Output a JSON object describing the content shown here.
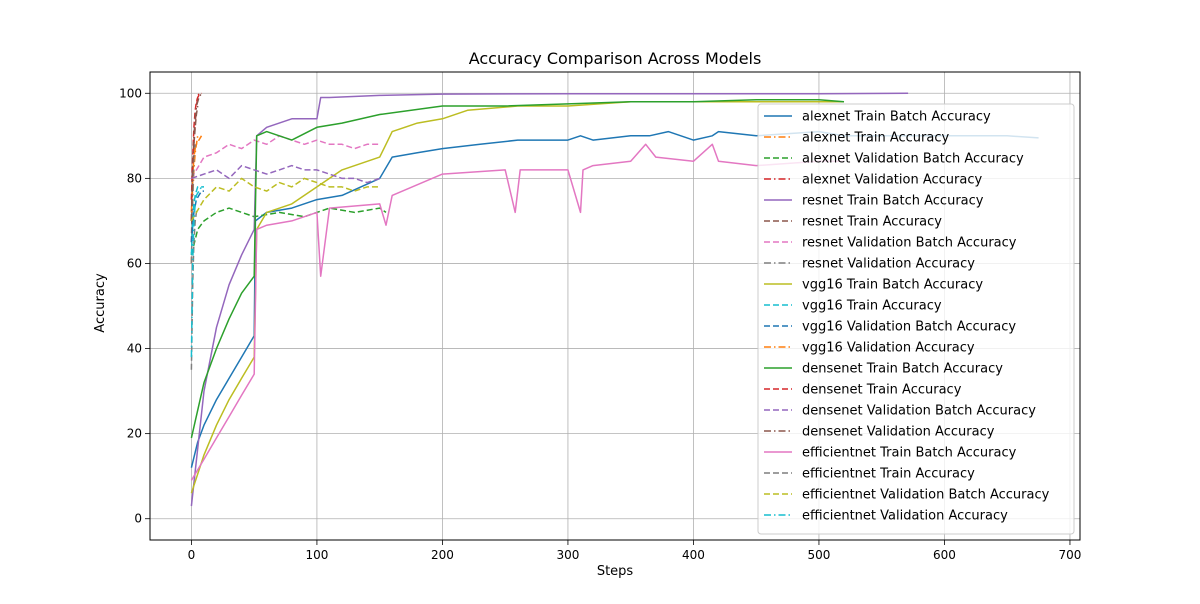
{
  "chart_data": {
    "type": "line",
    "title": "Accuracy Comparison Across Models",
    "xlabel": "Steps",
    "ylabel": "Accuracy",
    "xlim": [
      -33,
      708
    ],
    "ylim": [
      -5,
      105
    ],
    "x_ticks": [
      0,
      100,
      200,
      300,
      400,
      500,
      600,
      700
    ],
    "x_tick_labels": [
      "0",
      "100",
      "200",
      "300",
      "400",
      "500",
      "600",
      "700"
    ],
    "y_ticks": [
      0,
      20,
      40,
      60,
      80,
      100
    ],
    "y_tick_labels": [
      "0",
      "20",
      "40",
      "60",
      "80",
      "100"
    ],
    "grid": true,
    "legend_position": "right",
    "series": [
      {
        "name": "alexnet Train Batch Accuracy",
        "color": "#1f77b4",
        "style": "solid",
        "x": [
          0,
          5,
          10,
          20,
          30,
          40,
          50,
          51,
          60,
          80,
          100,
          120,
          150,
          160,
          180,
          200,
          230,
          260,
          270,
          300,
          310,
          320,
          350,
          365,
          380,
          400,
          415,
          420,
          450,
          500,
          520,
          550,
          600,
          650,
          675
        ],
        "y": [
          12,
          18,
          22,
          28,
          33,
          38,
          43,
          70,
          72,
          73,
          75,
          76,
          80,
          85,
          86,
          87,
          88,
          89,
          89,
          89,
          90,
          89,
          90,
          90,
          91,
          89,
          90,
          91,
          90,
          91,
          90,
          90,
          90,
          90,
          89.5
        ]
      },
      {
        "name": "alexnet Train Accuracy",
        "color": "#ff7f0e",
        "style": "dashdot",
        "x": [
          0,
          1,
          2,
          3,
          4,
          5
        ],
        "y": [
          60,
          75,
          82,
          86,
          88,
          90
        ]
      },
      {
        "name": "alexnet Validation Batch Accuracy",
        "color": "#2ca02c",
        "style": "dashed",
        "x": [
          0,
          5,
          10,
          20,
          30,
          50,
          70,
          90,
          110,
          130,
          150,
          155
        ],
        "y": [
          62,
          68,
          70,
          72,
          73,
          71,
          72,
          71,
          73,
          72,
          73,
          72
        ]
      },
      {
        "name": "alexnet Validation Accuracy",
        "color": "#d62728",
        "style": "dashdot",
        "x": [
          0,
          1,
          2,
          3,
          4,
          5,
          6,
          8
        ],
        "y": [
          70,
          80,
          88,
          93,
          97,
          99,
          100,
          100
        ]
      },
      {
        "name": "resnet Train Batch Accuracy",
        "color": "#9467bd",
        "style": "solid",
        "x": [
          0,
          10,
          20,
          30,
          40,
          50,
          52,
          60,
          80,
          100,
          103,
          110,
          150,
          200,
          300,
          400,
          500,
          571
        ],
        "y": [
          3,
          30,
          45,
          55,
          62,
          68,
          90,
          92,
          94,
          94,
          99,
          99,
          99.5,
          99.8,
          99.9,
          99.9,
          99.9,
          100
        ]
      },
      {
        "name": "resnet Train Accuracy",
        "color": "#8c564b",
        "style": "dashed",
        "x": [
          0,
          1,
          2,
          3,
          4,
          5
        ],
        "y": [
          65,
          80,
          88,
          92,
          95,
          97
        ]
      },
      {
        "name": "resnet Validation Batch Accuracy",
        "color": "#e377c2",
        "style": "dashed",
        "x": [
          0,
          10,
          20,
          30,
          40,
          50,
          60,
          70,
          80,
          90,
          100,
          110,
          120,
          130,
          140,
          150
        ],
        "y": [
          80,
          85,
          86,
          88,
          87,
          89,
          88,
          90,
          89,
          88,
          89,
          88,
          88,
          87,
          88,
          88
        ]
      },
      {
        "name": "resnet Validation Accuracy",
        "color": "#7f7f7f",
        "style": "dashdot",
        "x": [
          0,
          1,
          2,
          3
        ],
        "y": [
          60,
          75,
          85,
          88
        ]
      },
      {
        "name": "vgg16 Train Batch Accuracy",
        "color": "#bcbd22",
        "style": "solid",
        "x": [
          0,
          10,
          20,
          30,
          40,
          50,
          52,
          60,
          80,
          100,
          120,
          150,
          155,
          160,
          180,
          200,
          220,
          260,
          300,
          350,
          400,
          450,
          500,
          520
        ],
        "y": [
          6,
          15,
          22,
          28,
          33,
          38,
          68,
          72,
          74,
          78,
          82,
          85,
          88,
          91,
          93,
          94,
          96,
          97,
          97,
          98,
          98,
          98,
          98,
          98
        ]
      },
      {
        "name": "vgg16 Train Accuracy",
        "color": "#17becf",
        "style": "dashed",
        "x": [
          0,
          1,
          2,
          3,
          4,
          5,
          8,
          10
        ],
        "y": [
          62,
          70,
          74,
          76,
          77,
          78,
          78,
          78
        ]
      },
      {
        "name": "vgg16 Validation Batch Accuracy",
        "color": "#1f77b4",
        "style": "dashed",
        "x": [
          0,
          2,
          4,
          6,
          8,
          10
        ],
        "y": [
          65,
          72,
          75,
          76,
          77,
          77
        ]
      },
      {
        "name": "vgg16 Validation Accuracy",
        "color": "#ff7f0e",
        "style": "dashdot",
        "x": [
          0,
          1,
          2,
          3,
          4,
          6,
          8
        ],
        "y": [
          72,
          80,
          85,
          87,
          88,
          89,
          90
        ]
      },
      {
        "name": "densenet Train Batch Accuracy",
        "color": "#2ca02c",
        "style": "solid",
        "x": [
          0,
          10,
          20,
          30,
          40,
          50,
          52,
          60,
          80,
          100,
          120,
          150,
          200,
          250,
          300,
          350,
          400,
          450,
          500,
          520
        ],
        "y": [
          19,
          32,
          40,
          47,
          53,
          57,
          90,
          91,
          89,
          92,
          93,
          95,
          97,
          97,
          97.5,
          98,
          98,
          98.5,
          98.5,
          98
        ]
      },
      {
        "name": "densenet Train Accuracy",
        "color": "#d62728",
        "style": "dashed",
        "x": [
          0,
          1,
          2,
          3,
          4,
          5,
          6,
          8
        ],
        "y": [
          75,
          85,
          92,
          96,
          98,
          99,
          99.5,
          100
        ]
      },
      {
        "name": "densenet Validation Batch Accuracy",
        "color": "#9467bd",
        "style": "dashed",
        "x": [
          0,
          10,
          20,
          30,
          40,
          50,
          60,
          70,
          80,
          90,
          100,
          110,
          120,
          130,
          140,
          150
        ],
        "y": [
          80,
          81,
          82,
          80,
          83,
          82,
          81,
          82,
          83,
          82,
          82,
          81,
          80,
          80,
          79,
          80
        ]
      },
      {
        "name": "densenet Validation Accuracy",
        "color": "#8c564b",
        "style": "dashdot",
        "x": [
          0,
          1,
          2,
          3,
          4,
          5,
          6,
          8
        ],
        "y": [
          70,
          82,
          90,
          94,
          97,
          98,
          99,
          100
        ]
      },
      {
        "name": "efficientnet Train Batch Accuracy",
        "color": "#e377c2",
        "style": "solid",
        "x": [
          0,
          10,
          20,
          30,
          40,
          50,
          52,
          60,
          80,
          100,
          103,
          110,
          150,
          155,
          160,
          200,
          250,
          258,
          262,
          300,
          310,
          312,
          320,
          350,
          362,
          370,
          400,
          415,
          420,
          450,
          500,
          520
        ],
        "y": [
          9,
          14,
          19,
          24,
          29,
          34,
          68,
          69,
          70,
          72,
          57,
          73,
          74,
          69,
          76,
          81,
          82,
          72,
          82,
          82,
          72,
          82,
          83,
          84,
          88,
          85,
          84,
          88,
          84,
          83,
          84,
          84
        ]
      },
      {
        "name": "efficientnet Train Accuracy",
        "color": "#7f7f7f",
        "style": "dashed",
        "x": [
          0,
          1,
          2,
          3,
          4,
          5
        ],
        "y": [
          35,
          55,
          65,
          70,
          72,
          73
        ]
      },
      {
        "name": "efficientnet Validation Batch Accuracy",
        "color": "#bcbd22",
        "style": "dashed",
        "x": [
          0,
          10,
          20,
          30,
          40,
          50,
          60,
          70,
          80,
          90,
          100,
          110,
          120,
          130,
          140,
          150
        ],
        "y": [
          70,
          75,
          78,
          77,
          80,
          78,
          77,
          79,
          78,
          80,
          79,
          78,
          78,
          77,
          78,
          78
        ]
      },
      {
        "name": "efficientnet Validation Accuracy",
        "color": "#17becf",
        "style": "dashdot",
        "x": [
          0,
          1,
          2,
          3,
          4,
          6,
          8,
          10
        ],
        "y": [
          38,
          60,
          70,
          74,
          76,
          77,
          78,
          78
        ]
      }
    ]
  }
}
